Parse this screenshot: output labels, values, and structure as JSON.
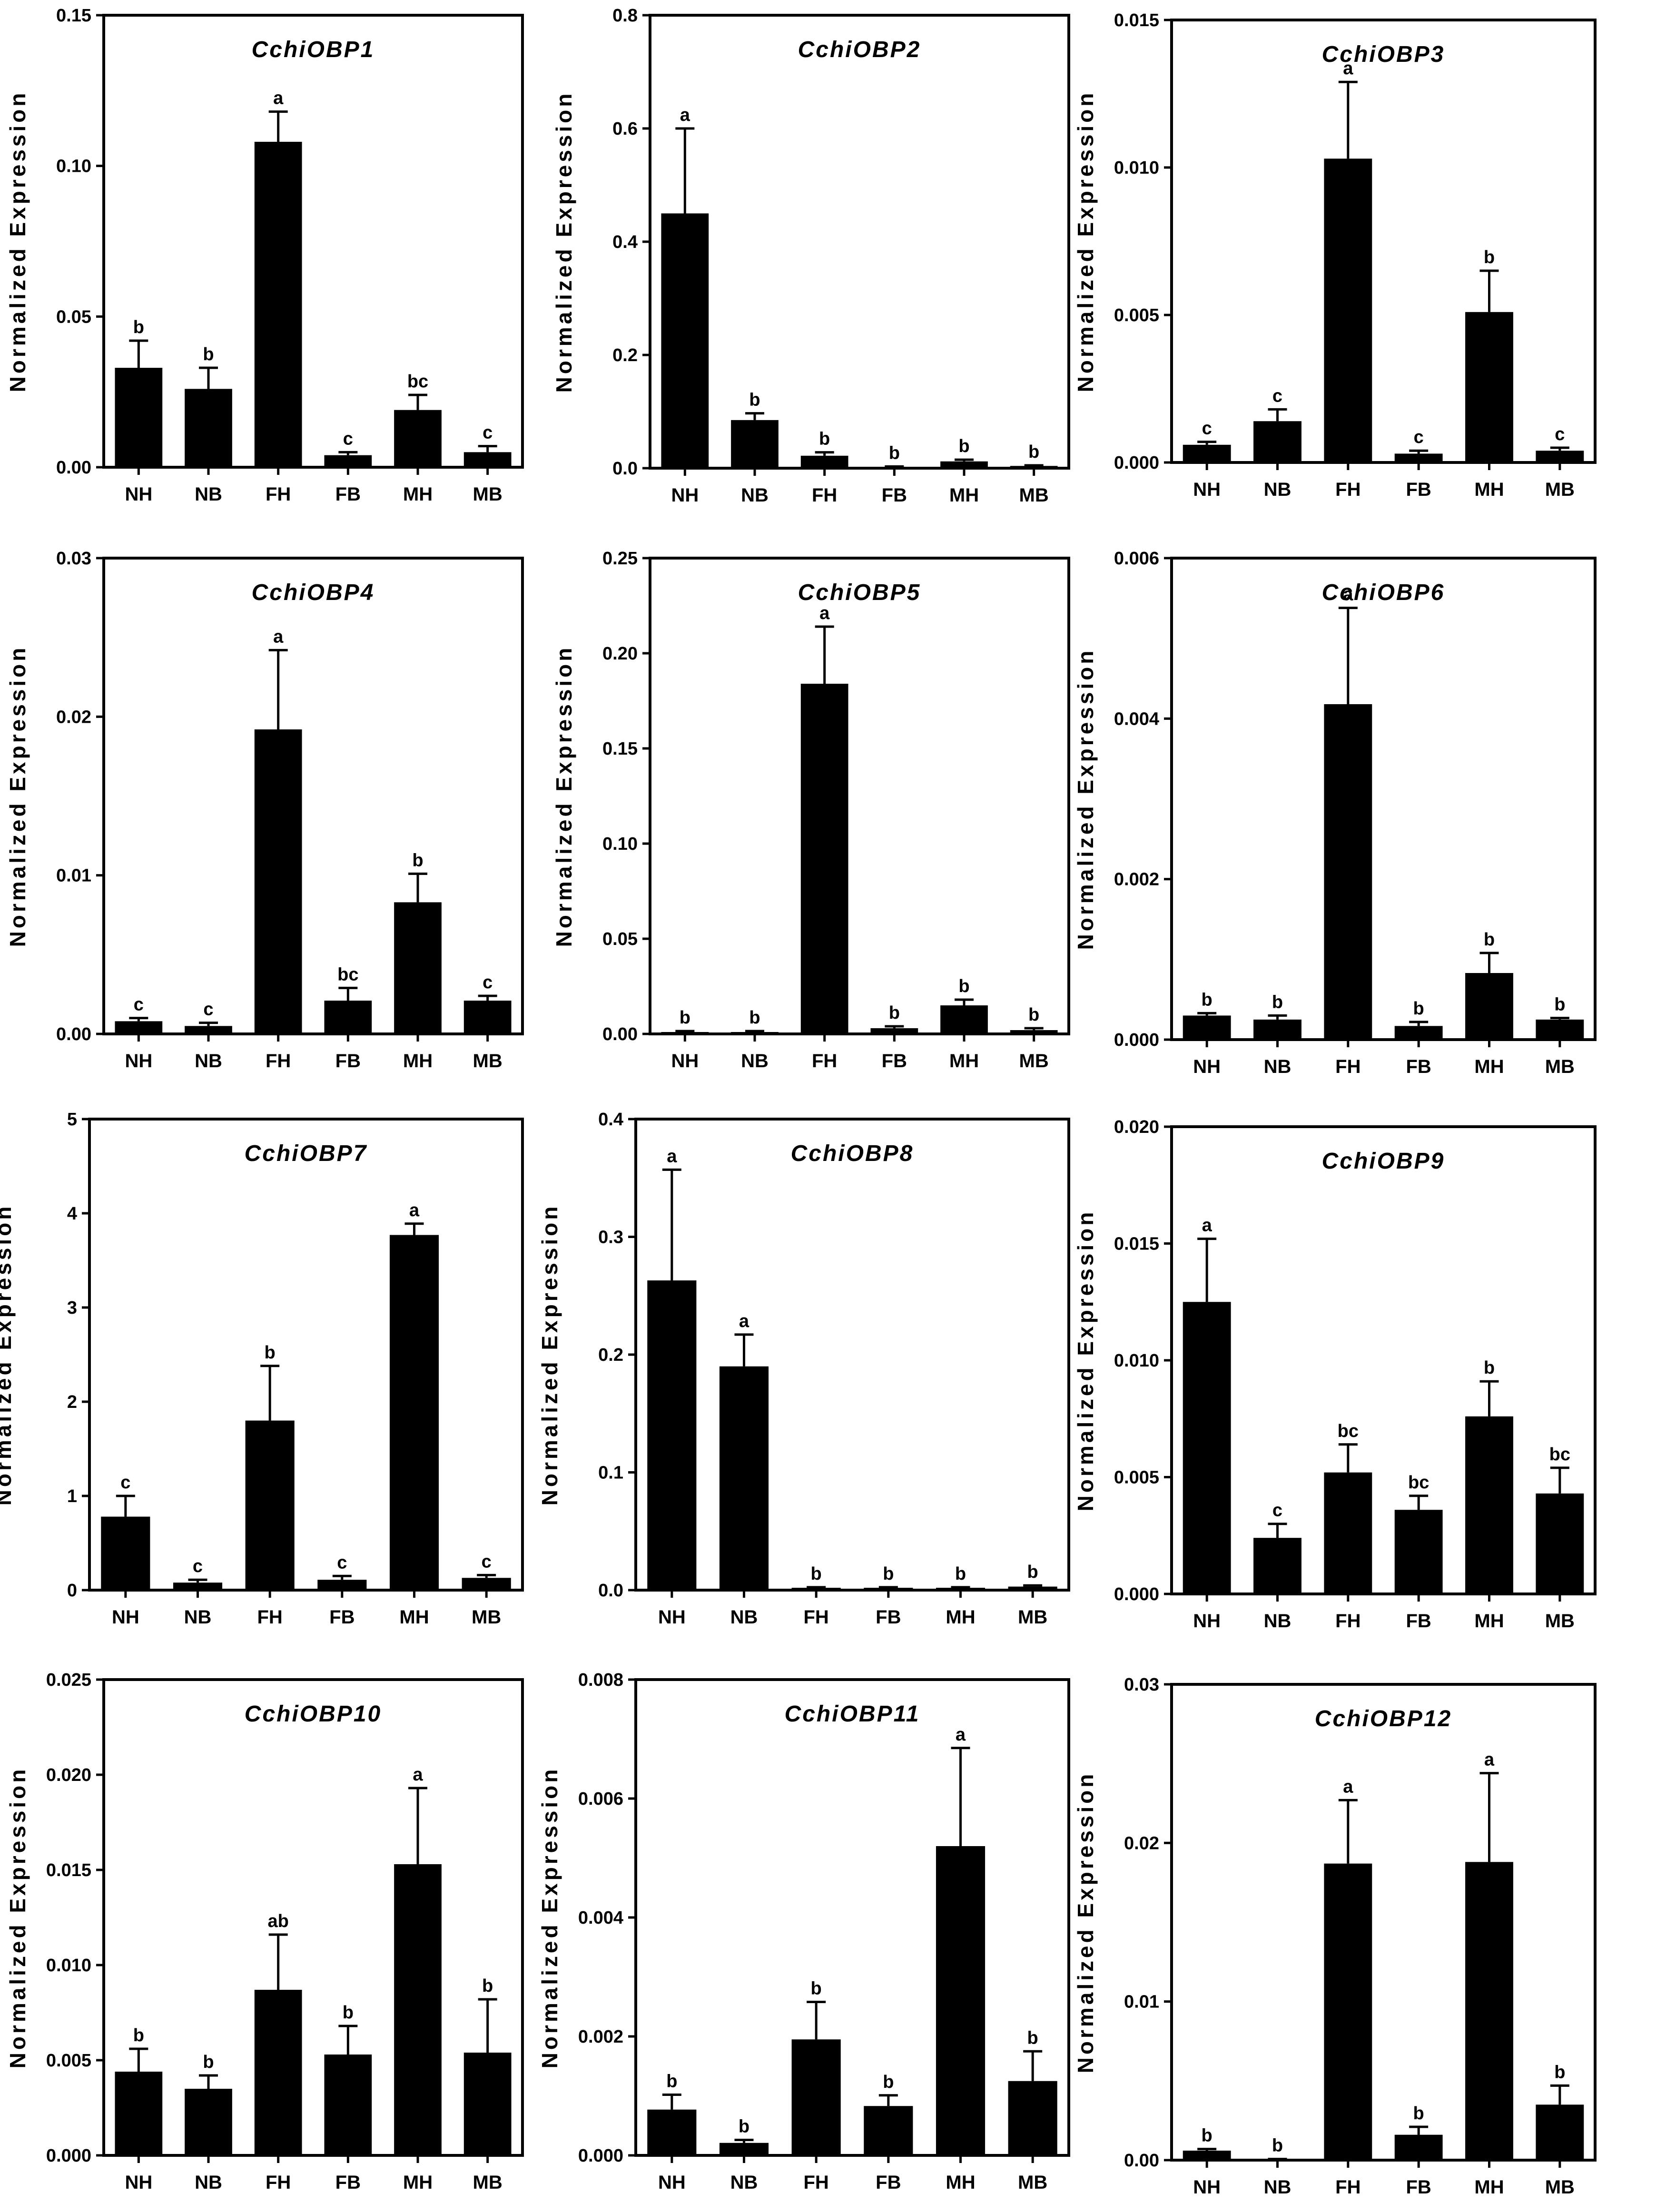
{
  "chart_data": [
    {
      "type": "bar",
      "title": "CchiOBP1",
      "ylabel": "Normalized Expression",
      "categories": [
        "NH",
        "NB",
        "FH",
        "FB",
        "MH",
        "MB"
      ],
      "ylim": [
        0,
        0.15
      ],
      "yticks": [
        0,
        0.05,
        0.1,
        0.15
      ],
      "ytick_labels": [
        "0.00",
        "0.05",
        "0.10",
        "0.15"
      ],
      "values": [
        0.033,
        0.026,
        0.108,
        0.004,
        0.019,
        0.005
      ],
      "errors": [
        0.009,
        0.007,
        0.01,
        0.001,
        0.005,
        0.002
      ],
      "labels": [
        "b",
        "b",
        "a",
        "c",
        "bc",
        "c"
      ]
    },
    {
      "type": "bar",
      "title": "CchiOBP2",
      "ylabel": "Normalized Expression",
      "categories": [
        "NH",
        "NB",
        "FH",
        "FB",
        "MH",
        "MB"
      ],
      "ylim": [
        0,
        0.8
      ],
      "yticks": [
        0,
        0.2,
        0.4,
        0.6,
        0.8
      ],
      "ytick_labels": [
        "0.0",
        "0.2",
        "0.4",
        "0.6",
        "0.8"
      ],
      "values": [
        0.45,
        0.085,
        0.022,
        0.002,
        0.012,
        0.004
      ],
      "errors": [
        0.15,
        0.012,
        0.006,
        0.001,
        0.003,
        0.001
      ],
      "labels": [
        "a",
        "b",
        "b",
        "b",
        "b",
        "b"
      ]
    },
    {
      "type": "bar",
      "title": "CchiOBP3",
      "ylabel": "Normalized Expression",
      "categories": [
        "NH",
        "NB",
        "FH",
        "FB",
        "MH",
        "MB"
      ],
      "ylim": [
        0,
        0.015
      ],
      "yticks": [
        0,
        0.005,
        0.01,
        0.015
      ],
      "ytick_labels": [
        "0.000",
        "0.005",
        "0.010",
        "0.015"
      ],
      "values": [
        0.0006,
        0.0014,
        0.0103,
        0.0003,
        0.0051,
        0.0004
      ],
      "errors": [
        0.0001,
        0.0004,
        0.0026,
        0.0001,
        0.0014,
        0.0001
      ],
      "labels": [
        "c",
        "c",
        "a",
        "c",
        "b",
        "c"
      ]
    },
    {
      "type": "bar",
      "title": "CchiOBP4",
      "ylabel": "Normalized Expression",
      "categories": [
        "NH",
        "NB",
        "FH",
        "FB",
        "MH",
        "MB"
      ],
      "ylim": [
        0,
        0.03
      ],
      "yticks": [
        0,
        0.01,
        0.02,
        0.03
      ],
      "ytick_labels": [
        "0.00",
        "0.01",
        "0.02",
        "0.03"
      ],
      "values": [
        0.0008,
        0.0005,
        0.0192,
        0.0021,
        0.0083,
        0.0021
      ],
      "errors": [
        0.0002,
        0.0002,
        0.005,
        0.0008,
        0.0018,
        0.0003
      ],
      "labels": [
        "c",
        "c",
        "a",
        "bc",
        "b",
        "c"
      ]
    },
    {
      "type": "bar",
      "title": "CchiOBP5",
      "ylabel": "Normalized Expression",
      "categories": [
        "NH",
        "NB",
        "FH",
        "FB",
        "MH",
        "MB"
      ],
      "ylim": [
        0,
        0.25
      ],
      "yticks": [
        0,
        0.05,
        0.1,
        0.15,
        0.2,
        0.25
      ],
      "ytick_labels": [
        "0.00",
        "0.05",
        "0.10",
        "0.15",
        "0.20",
        "0.25"
      ],
      "values": [
        0.001,
        0.001,
        0.184,
        0.003,
        0.015,
        0.002
      ],
      "errors": [
        0.0005,
        0.0005,
        0.03,
        0.001,
        0.003,
        0.001
      ],
      "labels": [
        "b",
        "b",
        "a",
        "b",
        "b",
        "b"
      ]
    },
    {
      "type": "bar",
      "title": "CchiOBP6",
      "ylabel": "Normalized Expression",
      "categories": [
        "NH",
        "NB",
        "FH",
        "FB",
        "MH",
        "MB"
      ],
      "ylim": [
        0,
        0.006
      ],
      "yticks": [
        0,
        0.002,
        0.004,
        0.006
      ],
      "ytick_labels": [
        "0.000",
        "0.002",
        "0.004",
        "0.006"
      ],
      "values": [
        0.0003,
        0.00025,
        0.00418,
        0.00017,
        0.00083,
        0.00025
      ],
      "errors": [
        3e-05,
        5e-05,
        0.0012,
        5e-05,
        0.00025,
        2e-05
      ],
      "labels": [
        "b",
        "b",
        "a",
        "b",
        "b",
        "b"
      ]
    },
    {
      "type": "bar",
      "title": "CchiOBP7",
      "ylabel": "Normalized Expression",
      "categories": [
        "NH",
        "NB",
        "FH",
        "FB",
        "MH",
        "MB"
      ],
      "ylim": [
        0,
        5
      ],
      "yticks": [
        0,
        1,
        2,
        3,
        4,
        5
      ],
      "ytick_labels": [
        "0",
        "1",
        "2",
        "3",
        "4",
        "5"
      ],
      "values": [
        0.78,
        0.08,
        1.8,
        0.11,
        3.77,
        0.13
      ],
      "errors": [
        0.22,
        0.03,
        0.58,
        0.04,
        0.12,
        0.03
      ],
      "labels": [
        "c",
        "c",
        "b",
        "c",
        "a",
        "c"
      ]
    },
    {
      "type": "bar",
      "title": "CchiOBP8",
      "ylabel": "Normalized Expression",
      "categories": [
        "NH",
        "NB",
        "FH",
        "FB",
        "MH",
        "MB"
      ],
      "ylim": [
        0,
        0.4
      ],
      "yticks": [
        0,
        0.1,
        0.2,
        0.3,
        0.4
      ],
      "ytick_labels": [
        "0.0",
        "0.1",
        "0.2",
        "0.3",
        "0.4"
      ],
      "values": [
        0.263,
        0.19,
        0.002,
        0.002,
        0.002,
        0.003
      ],
      "errors": [
        0.094,
        0.027,
        0.0005,
        0.0005,
        0.0005,
        0.001
      ],
      "labels": [
        "a",
        "a",
        "b",
        "b",
        "b",
        "b"
      ]
    },
    {
      "type": "bar",
      "title": "CchiOBP9",
      "ylabel": "Normalized Expression",
      "categories": [
        "NH",
        "NB",
        "FH",
        "FB",
        "MH",
        "MB"
      ],
      "ylim": [
        0,
        0.02
      ],
      "yticks": [
        0,
        0.005,
        0.01,
        0.015,
        0.02
      ],
      "ytick_labels": [
        "0.000",
        "0.005",
        "0.010",
        "0.015",
        "0.020"
      ],
      "values": [
        0.0125,
        0.0024,
        0.0052,
        0.0036,
        0.0076,
        0.0043
      ],
      "errors": [
        0.0027,
        0.0006,
        0.0012,
        0.0006,
        0.0015,
        0.0011
      ],
      "labels": [
        "a",
        "c",
        "bc",
        "bc",
        "b",
        "bc"
      ]
    },
    {
      "type": "bar",
      "title": "CchiOBP10",
      "ylabel": "Normalized Expression",
      "categories": [
        "NH",
        "NB",
        "FH",
        "FB",
        "MH",
        "MB"
      ],
      "ylim": [
        0,
        0.025
      ],
      "yticks": [
        0,
        0.005,
        0.01,
        0.015,
        0.02,
        0.025
      ],
      "ytick_labels": [
        "0.000",
        "0.005",
        "0.010",
        "0.015",
        "0.020",
        "0.025"
      ],
      "values": [
        0.0044,
        0.0035,
        0.0087,
        0.0053,
        0.0153,
        0.0054
      ],
      "errors": [
        0.0012,
        0.0007,
        0.0029,
        0.0015,
        0.004,
        0.0028
      ],
      "labels": [
        "b",
        "b",
        "ab",
        "b",
        "a",
        "b"
      ]
    },
    {
      "type": "bar",
      "title": "CchiOBP11",
      "ylabel": "Normalized Expression",
      "categories": [
        "NH",
        "NB",
        "FH",
        "FB",
        "MH",
        "MB"
      ],
      "ylim": [
        0,
        0.008
      ],
      "yticks": [
        0,
        0.002,
        0.004,
        0.006,
        0.008
      ],
      "ytick_labels": [
        "0.000",
        "0.002",
        "0.004",
        "0.006",
        "0.008"
      ],
      "values": [
        0.00077,
        0.00021,
        0.00195,
        0.00083,
        0.0052,
        0.00125
      ],
      "errors": [
        0.00025,
        5e-05,
        0.00063,
        0.00018,
        0.00165,
        0.0005
      ],
      "labels": [
        "b",
        "b",
        "b",
        "b",
        "a",
        "b"
      ]
    },
    {
      "type": "bar",
      "title": "CchiOBP12",
      "ylabel": "Normalized Expression",
      "categories": [
        "NH",
        "NB",
        "FH",
        "FB",
        "MH",
        "MB"
      ],
      "ylim": [
        0,
        0.03
      ],
      "yticks": [
        0,
        0.01,
        0.02,
        0.03
      ],
      "ytick_labels": [
        "0.00",
        "0.01",
        "0.02",
        "0.03"
      ],
      "values": [
        0.0006,
        5e-05,
        0.0187,
        0.0016,
        0.0188,
        0.0035
      ],
      "errors": [
        0.0001,
        2e-05,
        0.004,
        0.0005,
        0.0056,
        0.0012
      ],
      "labels": [
        "b",
        "b",
        "a",
        "b",
        "a",
        "b"
      ]
    }
  ]
}
